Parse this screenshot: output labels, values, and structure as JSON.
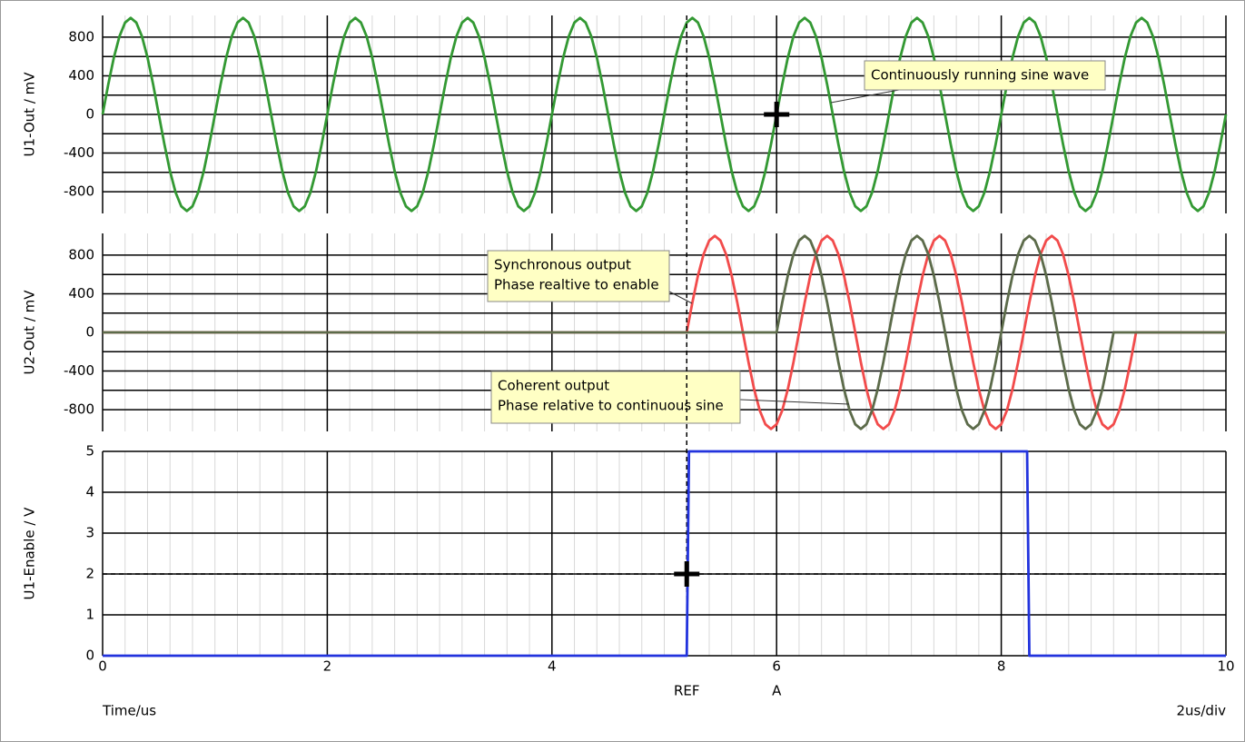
{
  "chart_data": [
    {
      "type": "line",
      "ylabel": "U1-Out / mV",
      "xlim": [
        0,
        10
      ],
      "xticks": [
        0,
        2,
        4,
        6,
        8,
        10
      ],
      "show_xtick_labels": false,
      "ylim": [
        -1025,
        1025
      ],
      "yticks": [
        -800,
        -400,
        0,
        400,
        800
      ],
      "ygrid_minor": [
        -600,
        -200,
        200,
        600
      ],
      "grid": true,
      "x": [
        0,
        0.05,
        0.1,
        0.15,
        0.2,
        0.25,
        0.3,
        0.35,
        0.4,
        0.45,
        0.5,
        0.55,
        0.6,
        0.65,
        0.7,
        0.75,
        0.8,
        0.85,
        0.9,
        0.95,
        1,
        1.05,
        1.1,
        1.15,
        1.2,
        1.25,
        1.3,
        1.35,
        1.4,
        1.45,
        1.5,
        1.55,
        1.6,
        1.65,
        1.7,
        1.75,
        1.8,
        1.85,
        1.9,
        1.95,
        2,
        2.05,
        2.1,
        2.15,
        2.2,
        2.25,
        2.3,
        2.35,
        2.4,
        2.45,
        2.5,
        2.55,
        2.6,
        2.65,
        2.7,
        2.75,
        2.8,
        2.85,
        2.9,
        2.95,
        3,
        3.05,
        3.1,
        3.15,
        3.2,
        3.25,
        3.3,
        3.35,
        3.4,
        3.45,
        3.5,
        3.55,
        3.6,
        3.65,
        3.7,
        3.75,
        3.8,
        3.85,
        3.9,
        3.95,
        4,
        4.05,
        4.1,
        4.15,
        4.2,
        4.25,
        4.3,
        4.35,
        4.4,
        4.45,
        4.5,
        4.55,
        4.6,
        4.65,
        4.7,
        4.75,
        4.8,
        4.85,
        4.9,
        4.95,
        5,
        5.05,
        5.1,
        5.15,
        5.2,
        5.25,
        5.3,
        5.35,
        5.4,
        5.45,
        5.5,
        5.55,
        5.6,
        5.65,
        5.7,
        5.75,
        5.8,
        5.85,
        5.9,
        5.95,
        6,
        6.05,
        6.1,
        6.15,
        6.2,
        6.25,
        6.3,
        6.35,
        6.4,
        6.45,
        6.5,
        6.55,
        6.6,
        6.65,
        6.7,
        6.75,
        6.8,
        6.85,
        6.9,
        6.95,
        7,
        7.05,
        7.1,
        7.15,
        7.2,
        7.25,
        7.3,
        7.35,
        7.4,
        7.45,
        7.5,
        7.55,
        7.6,
        7.65,
        7.7,
        7.75,
        7.8,
        7.85,
        7.9,
        7.95,
        8,
        8.05,
        8.1,
        8.15,
        8.2,
        8.25,
        8.3,
        8.35,
        8.4,
        8.45,
        8.5,
        8.55,
        8.6,
        8.65,
        8.7,
        8.75,
        8.8,
        8.85,
        8.9,
        8.95,
        9,
        9.05,
        9.1,
        9.15,
        9.2,
        9.25,
        9.3,
        9.35,
        9.4,
        9.45,
        9.5,
        9.55,
        9.6,
        9.65,
        9.7,
        9.75,
        9.8,
        9.85,
        9.9,
        9.95,
        10
      ],
      "series": [
        {
          "color": "#339933",
          "values": [
            0,
            309,
            588,
            809,
            951,
            1000,
            951,
            809,
            588,
            309,
            0,
            -309,
            -588,
            -809,
            -951,
            -1000,
            -951,
            -809,
            -588,
            -309,
            0,
            309,
            588,
            809,
            951,
            1000,
            951,
            809,
            588,
            309,
            0,
            -309,
            -588,
            -809,
            -951,
            -1000,
            -951,
            -809,
            -588,
            -309,
            0,
            309,
            588,
            809,
            951,
            1000,
            951,
            809,
            588,
            309,
            0,
            -309,
            -588,
            -809,
            -951,
            -1000,
            -951,
            -809,
            -588,
            -309,
            0,
            309,
            588,
            809,
            951,
            1000,
            951,
            809,
            588,
            309,
            0,
            -309,
            -588,
            -809,
            -951,
            -1000,
            -951,
            -809,
            -588,
            -309,
            0,
            309,
            588,
            809,
            951,
            1000,
            951,
            809,
            588,
            309,
            0,
            -309,
            -588,
            -809,
            -951,
            -1000,
            -951,
            -809,
            -588,
            -309,
            0,
            309,
            588,
            809,
            951,
            1000,
            951,
            809,
            588,
            309,
            0,
            -309,
            -588,
            -809,
            -951,
            -1000,
            -951,
            -809,
            -588,
            -309,
            0,
            309,
            588,
            809,
            951,
            1000,
            951,
            809,
            588,
            309,
            0,
            -309,
            -588,
            -809,
            -951,
            -1000,
            -951,
            -809,
            -588,
            -309,
            0,
            309,
            588,
            809,
            951,
            1000,
            951,
            809,
            588,
            309,
            0,
            -309,
            -588,
            -809,
            -951,
            -1000,
            -951,
            -809,
            -588,
            -309,
            0,
            309,
            588,
            809,
            951,
            1000,
            951,
            809,
            588,
            309,
            0,
            -309,
            -588,
            -809,
            -951,
            -1000,
            -951,
            -809,
            -588,
            -309,
            0,
            309,
            588,
            809,
            951,
            1000,
            951,
            809,
            588,
            309,
            0,
            -309,
            -588,
            -809,
            -951,
            -1000,
            -951,
            -809,
            -588,
            -309,
            0
          ]
        }
      ],
      "annotations": [
        {
          "lines": [
            "Continuously running sine wave"
          ]
        }
      ],
      "cursor": {
        "name": "A",
        "x": 6,
        "y": 0,
        "lines": false
      }
    },
    {
      "type": "line",
      "ylabel": "U2-Out / mV",
      "xlim": [
        0,
        10
      ],
      "xticks": [
        0,
        2,
        4,
        6,
        8,
        10
      ],
      "show_xtick_labels": false,
      "ylim": [
        -1025,
        1025
      ],
      "yticks": [
        -800,
        -400,
        0,
        400,
        800
      ],
      "ygrid_minor": [
        -600,
        -200,
        200,
        600
      ],
      "grid": true,
      "series": [
        {
          "color": "#f24b4b",
          "x": [
            0,
            5.2,
            5.25,
            5.3,
            5.35,
            5.4,
            5.45,
            5.5,
            5.55,
            5.6,
            5.65,
            5.7,
            5.75,
            5.8,
            5.85,
            5.9,
            5.95,
            6,
            6.05,
            6.1,
            6.15,
            6.2,
            6.25,
            6.3,
            6.35,
            6.4,
            6.45,
            6.5,
            6.55,
            6.6,
            6.65,
            6.7,
            6.75,
            6.8,
            6.85,
            6.9,
            6.95,
            7,
            7.05,
            7.1,
            7.15,
            7.2,
            7.25,
            7.3,
            7.35,
            7.4,
            7.45,
            7.5,
            7.55,
            7.6,
            7.65,
            7.7,
            7.75,
            7.8,
            7.85,
            7.9,
            7.95,
            8,
            8.05,
            8.1,
            8.15,
            8.2,
            8.25,
            8.3,
            8.35,
            8.4,
            8.45,
            8.5,
            8.55,
            8.6,
            8.65,
            8.7,
            8.75,
            8.8,
            8.85,
            8.9,
            8.95,
            9,
            9.05,
            9.1,
            9.15,
            9.2,
            10
          ],
          "values": [
            0,
            0,
            309,
            588,
            809,
            951,
            1000,
            951,
            809,
            588,
            309,
            0,
            -309,
            -588,
            -809,
            -951,
            -1000,
            -951,
            -809,
            -588,
            -309,
            0,
            309,
            588,
            809,
            951,
            1000,
            951,
            809,
            588,
            309,
            0,
            -309,
            -588,
            -809,
            -951,
            -1000,
            -951,
            -809,
            -588,
            -309,
            0,
            309,
            588,
            809,
            951,
            1000,
            951,
            809,
            588,
            309,
            0,
            -309,
            -588,
            -809,
            -951,
            -1000,
            -951,
            -809,
            -588,
            -309,
            0,
            309,
            588,
            809,
            951,
            1000,
            951,
            809,
            588,
            309,
            0,
            -309,
            -588,
            -809,
            -951,
            -1000,
            -951,
            -809,
            -588,
            -309,
            0,
            0
          ]
        },
        {
          "color": "#5c6b4a",
          "x": [
            0,
            6,
            6.05,
            6.1,
            6.15,
            6.2,
            6.25,
            6.3,
            6.35,
            6.4,
            6.45,
            6.5,
            6.55,
            6.6,
            6.65,
            6.7,
            6.75,
            6.8,
            6.85,
            6.9,
            6.95,
            7,
            7.05,
            7.1,
            7.15,
            7.2,
            7.25,
            7.3,
            7.35,
            7.4,
            7.45,
            7.5,
            7.55,
            7.6,
            7.65,
            7.7,
            7.75,
            7.8,
            7.85,
            7.9,
            7.95,
            8,
            8.05,
            8.1,
            8.15,
            8.2,
            8.25,
            8.3,
            8.35,
            8.4,
            8.45,
            8.5,
            8.55,
            8.6,
            8.65,
            8.7,
            8.75,
            8.8,
            8.85,
            8.9,
            8.95,
            9,
            10
          ],
          "values": [
            0,
            0,
            309,
            588,
            809,
            951,
            1000,
            951,
            809,
            588,
            309,
            0,
            -309,
            -588,
            -809,
            -951,
            -1000,
            -951,
            -809,
            -588,
            -309,
            0,
            309,
            588,
            809,
            951,
            1000,
            951,
            809,
            588,
            309,
            0,
            -309,
            -588,
            -809,
            -951,
            -1000,
            -951,
            -809,
            -588,
            -309,
            0,
            309,
            588,
            809,
            951,
            1000,
            951,
            809,
            588,
            309,
            0,
            -309,
            -588,
            -809,
            -951,
            -1000,
            -951,
            -809,
            -588,
            -309,
            0,
            0
          ]
        }
      ],
      "annotations": [
        {
          "lines": [
            "Synchronous output",
            "Phase realtive to enable"
          ]
        },
        {
          "lines": [
            "Coherent output",
            "Phase relative to continuous sine"
          ]
        }
      ]
    },
    {
      "type": "line",
      "ylabel": "U1-Enable / V",
      "xlabel": "Time/us",
      "scale_label": "2us/div",
      "xlim": [
        0,
        10
      ],
      "xticks": [
        0,
        2,
        4,
        6,
        8,
        10
      ],
      "show_xtick_labels": true,
      "ylim": [
        0,
        5
      ],
      "yticks": [
        0,
        1,
        2,
        3,
        4,
        5
      ],
      "grid": true,
      "series": [
        {
          "color": "#2233dd",
          "x": [
            0,
            5.2,
            5.22,
            8.23,
            8.25,
            10
          ],
          "values": [
            0,
            0,
            5,
            5,
            0,
            0
          ]
        }
      ],
      "cursor": {
        "name": "REF",
        "x": 5.2,
        "y": 2,
        "lines": true
      }
    }
  ]
}
